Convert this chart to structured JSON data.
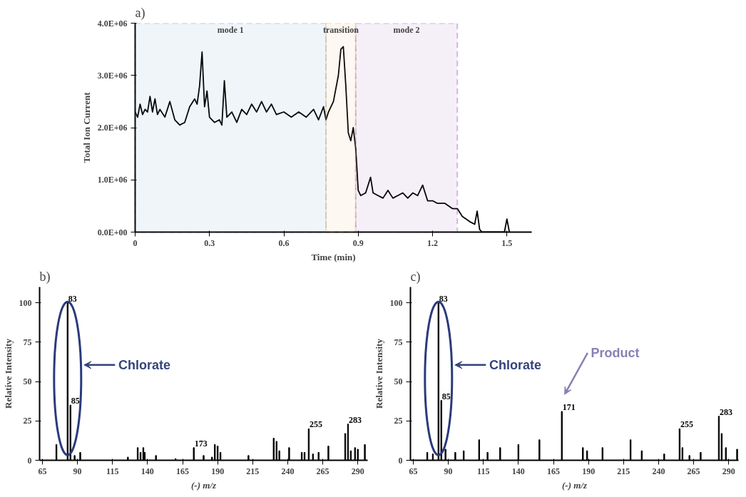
{
  "chart_data": [
    {
      "type": "line",
      "title": "a)",
      "xlabel": "Time (min)",
      "ylabel": "Total Ion Current",
      "xlim": [
        0,
        1.6
      ],
      "ylim": [
        0,
        4000000
      ],
      "xticks": [
        0,
        0.3,
        0.6,
        0.9,
        1.2,
        1.5
      ],
      "yticks": [
        {
          "value": 0,
          "label": "0.0E+00"
        },
        {
          "value": 1000000,
          "label": "1.0E+06"
        },
        {
          "value": 2000000,
          "label": "2.0E+06"
        },
        {
          "value": 3000000,
          "label": "3.0E+06"
        },
        {
          "value": 4000000,
          "label": "4.0E+06"
        }
      ],
      "x": [
        0,
        0.01,
        0.02,
        0.03,
        0.04,
        0.05,
        0.06,
        0.07,
        0.08,
        0.09,
        0.1,
        0.12,
        0.14,
        0.16,
        0.18,
        0.2,
        0.22,
        0.24,
        0.25,
        0.26,
        0.27,
        0.28,
        0.29,
        0.3,
        0.32,
        0.34,
        0.35,
        0.36,
        0.37,
        0.39,
        0.41,
        0.43,
        0.45,
        0.47,
        0.49,
        0.51,
        0.53,
        0.55,
        0.57,
        0.6,
        0.63,
        0.66,
        0.69,
        0.72,
        0.74,
        0.76,
        0.77,
        0.78,
        0.8,
        0.82,
        0.83,
        0.84,
        0.85,
        0.86,
        0.87,
        0.88,
        0.89,
        0.9,
        0.91,
        0.93,
        0.95,
        0.96,
        0.98,
        1.0,
        1.02,
        1.04,
        1.06,
        1.08,
        1.1,
        1.12,
        1.14,
        1.16,
        1.18,
        1.2,
        1.22,
        1.25,
        1.28,
        1.3,
        1.32,
        1.35,
        1.37,
        1.38,
        1.39,
        1.4,
        1.45,
        1.49,
        1.5,
        1.51
      ],
      "series": [
        {
          "color": "#000000",
          "values": [
            2300000,
            2200000,
            2450000,
            2250000,
            2350000,
            2300000,
            2600000,
            2300000,
            2550000,
            2250000,
            2350000,
            2200000,
            2500000,
            2150000,
            2050000,
            2100000,
            2400000,
            2550000,
            2450000,
            2800000,
            3450000,
            2400000,
            2700000,
            2200000,
            2100000,
            2150000,
            2050000,
            2900000,
            2200000,
            2300000,
            2100000,
            2350000,
            2250000,
            2450000,
            2300000,
            2500000,
            2300000,
            2450000,
            2250000,
            2300000,
            2200000,
            2300000,
            2200000,
            2350000,
            2150000,
            2400000,
            2150000,
            2300000,
            2500000,
            3000000,
            3500000,
            3550000,
            2800000,
            1900000,
            1750000,
            2000000,
            1600000,
            800000,
            700000,
            750000,
            1050000,
            750000,
            700000,
            650000,
            800000,
            650000,
            700000,
            750000,
            650000,
            750000,
            700000,
            900000,
            600000,
            600000,
            550000,
            550000,
            450000,
            450000,
            300000,
            200000,
            150000,
            400000,
            50000,
            0,
            0,
            0,
            250000,
            0
          ]
        }
      ],
      "bands": [
        {
          "axis": "x",
          "from": 0,
          "to": 0.77,
          "label": "mode 1",
          "color": "#2e75b6"
        },
        {
          "axis": "x",
          "from": 0.77,
          "to": 0.89,
          "label": "transition",
          "color": "#e8963c"
        },
        {
          "axis": "x",
          "from": 0.89,
          "to": 1.3,
          "label": "mode 2",
          "color": "#7030a0"
        }
      ]
    },
    {
      "type": "bar",
      "title": "b)",
      "xlabel": "(-) m/z",
      "ylabel": "Relative Intensity",
      "xlim": [
        63,
        297
      ],
      "ylim": [
        0,
        110
      ],
      "xticks": [
        65,
        90,
        115,
        140,
        165,
        190,
        215,
        240,
        265,
        290
      ],
      "yticks": [
        0,
        25,
        50,
        75,
        100
      ],
      "x": [
        75,
        83,
        85,
        88,
        92,
        126,
        133,
        135,
        137,
        138,
        146,
        160,
        173,
        180,
        186,
        188,
        190,
        192,
        212,
        230,
        232,
        234,
        241,
        250,
        252,
        255,
        258,
        262,
        269,
        281,
        283,
        285,
        288,
        290,
        295
      ],
      "series": [
        {
          "color": "#000000",
          "values": [
            10,
            100,
            35,
            3,
            5,
            2,
            8,
            5,
            8,
            5,
            3,
            1,
            8,
            3,
            2,
            10,
            9,
            5,
            3,
            14,
            12,
            6,
            8,
            5,
            5,
            20,
            4,
            5,
            9,
            17,
            23,
            6,
            8,
            7,
            10
          ]
        }
      ],
      "annotations": [
        {
          "text": "83",
          "x": 83,
          "y": 100
        },
        {
          "text": "85",
          "x": 85,
          "y": 35
        },
        {
          "text": "173",
          "x": 173,
          "y": 8
        },
        {
          "text": "255",
          "x": 255,
          "y": 20
        },
        {
          "text": "283",
          "x": 283,
          "y": 23
        },
        "Chlorate"
      ]
    },
    {
      "type": "bar",
      "title": "c)",
      "xlabel": "(-) m/z",
      "ylabel": "Relative Intensity",
      "xlim": [
        63,
        297
      ],
      "ylim": [
        0,
        110
      ],
      "xticks": [
        65,
        90,
        115,
        140,
        165,
        190,
        215,
        240,
        265,
        290
      ],
      "yticks": [
        0,
        25,
        50,
        75,
        100
      ],
      "x": [
        75,
        79,
        83,
        85,
        88,
        95,
        101,
        112,
        118,
        127,
        140,
        155,
        171,
        186,
        189,
        200,
        220,
        228,
        244,
        255,
        257,
        262,
        270,
        283,
        285,
        288,
        296
      ],
      "series": [
        {
          "color": "#000000",
          "values": [
            5,
            4,
            100,
            38,
            7,
            5,
            6,
            13,
            5,
            8,
            10,
            13,
            31,
            8,
            6,
            8,
            13,
            6,
            4,
            20,
            8,
            3,
            5,
            28,
            17,
            8,
            7
          ]
        }
      ],
      "annotations": [
        {
          "text": "83",
          "x": 83,
          "y": 100
        },
        {
          "text": "85",
          "x": 85,
          "y": 38
        },
        {
          "text": "171",
          "x": 171,
          "y": 31
        },
        {
          "text": "255",
          "x": 255,
          "y": 20
        },
        {
          "text": "283",
          "x": 283,
          "y": 28
        },
        "Chlorate",
        "Product"
      ]
    }
  ]
}
